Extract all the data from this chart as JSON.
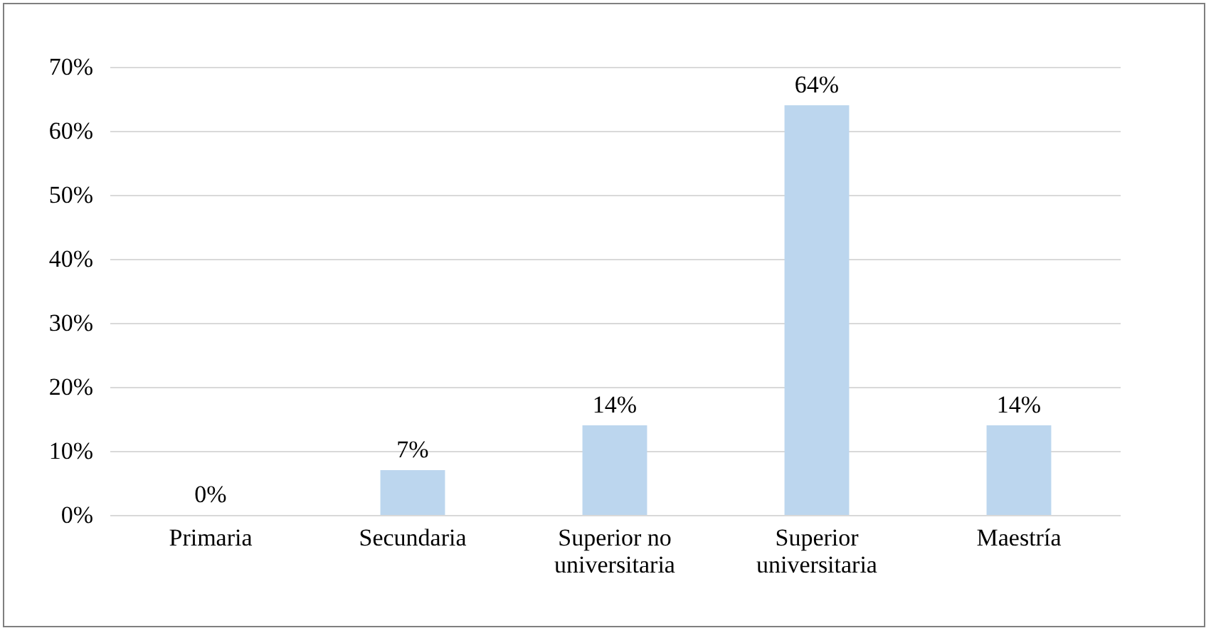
{
  "chart_data": {
    "type": "bar",
    "categories": [
      "Primaria",
      "Secundaria",
      "Superior no universitaria",
      "Superior universitaria",
      "Maestría"
    ],
    "values": [
      0,
      7,
      14,
      64,
      14
    ],
    "value_labels": [
      "0%",
      "7%",
      "14%",
      "64%",
      "14%"
    ],
    "color": "#bcd6ee",
    "ylim": [
      0,
      70
    ],
    "yticks": [
      {
        "value": 0,
        "label": "0%"
      },
      {
        "value": 10,
        "label": "10%"
      },
      {
        "value": 20,
        "label": "20%"
      },
      {
        "value": 30,
        "label": "30%"
      },
      {
        "value": 40,
        "label": "40%"
      },
      {
        "value": 50,
        "label": "50%"
      },
      {
        "value": 60,
        "label": "60%"
      },
      {
        "value": 70,
        "label": "70%"
      }
    ],
    "grid": "y"
  }
}
